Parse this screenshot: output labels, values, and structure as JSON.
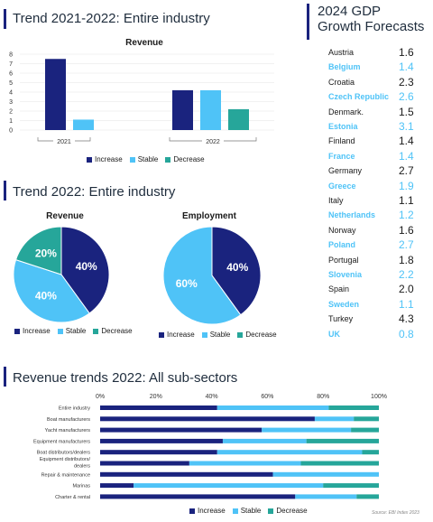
{
  "colors": {
    "increase": "#1a237e",
    "stable": "#4fc3f7",
    "decrease": "#26a69a",
    "accent": "#1a237e"
  },
  "sections": {
    "trend_2021_2022": "Trend 2021-2022: Entire industry",
    "trend_2022": "Trend 2022: Entire industry",
    "subsectors": "Revenue trends 2022: All sub-sectors"
  },
  "legend": {
    "increase": "Increase",
    "stable": "Stable",
    "decrease": "Decrease"
  },
  "gdp": {
    "title_line1": "2024 GDP",
    "title_line2": "Growth Forecasts",
    "rows": [
      {
        "name": "Austria",
        "value": "1.6",
        "hl": false
      },
      {
        "name": "Belgium",
        "value": "1.4",
        "hl": true
      },
      {
        "name": "Croatia",
        "value": "2.3",
        "hl": false
      },
      {
        "name": "Czech Republic",
        "value": "2.6",
        "hl": true
      },
      {
        "name": "Denmark.",
        "value": "1.5",
        "hl": false
      },
      {
        "name": "Estonia",
        "value": "3.1",
        "hl": true
      },
      {
        "name": "Finland",
        "value": "1.4",
        "hl": false
      },
      {
        "name": "France",
        "value": "1.4",
        "hl": true
      },
      {
        "name": "Germany",
        "value": "2.7",
        "hl": false
      },
      {
        "name": "Greece",
        "value": "1.9",
        "hl": true
      },
      {
        "name": "Italy",
        "value": "1.1",
        "hl": false
      },
      {
        "name": "Netherlands",
        "value": "1.2",
        "hl": true
      },
      {
        "name": "Norway",
        "value": "1.6",
        "hl": false
      },
      {
        "name": "Poland",
        "value": "2.7",
        "hl": true
      },
      {
        "name": "Portugal",
        "value": "1.8",
        "hl": false
      },
      {
        "name": "Slovenia",
        "value": "2.2",
        "hl": true
      },
      {
        "name": "Spain",
        "value": "2.0",
        "hl": false
      },
      {
        "name": "Sweden",
        "value": "1.1",
        "hl": true
      },
      {
        "name": "Turkey",
        "value": "4.3",
        "hl": false
      },
      {
        "name": "UK",
        "value": "0.8",
        "hl": true
      }
    ]
  },
  "source": "Source: EBI Index 2023",
  "chart_data": [
    {
      "type": "bar",
      "title": "Revenue",
      "groups": [
        "2021",
        "2022"
      ],
      "series": [
        {
          "name": "Increase",
          "values": [
            7.5,
            4.2
          ]
        },
        {
          "name": "Stable",
          "values": [
            1.1,
            4.2
          ]
        },
        {
          "name": "Decrease",
          "values": [
            0,
            2.2
          ]
        }
      ],
      "yticks": [
        "8",
        "7",
        "6",
        "5",
        "4",
        "3",
        "2",
        "1",
        "0"
      ],
      "ylim": [
        0,
        8
      ],
      "legend": "bottom"
    },
    {
      "type": "pie",
      "title": "Revenue",
      "slices": [
        {
          "name": "Increase",
          "value": 40,
          "label": "40%"
        },
        {
          "name": "Stable",
          "value": 40,
          "label": "40%"
        },
        {
          "name": "Decrease",
          "value": 20,
          "label": "20%"
        }
      ]
    },
    {
      "type": "pie",
      "title": "Employment",
      "slices": [
        {
          "name": "Increase",
          "value": 40,
          "label": "40%"
        },
        {
          "name": "Stable",
          "value": 60,
          "label": "60%"
        },
        {
          "name": "Decrease",
          "value": 0,
          "label": ""
        }
      ]
    },
    {
      "type": "bar",
      "orientation": "horizontal-stacked",
      "xticks": [
        "0%",
        "20%",
        "40%",
        "60%",
        "80%",
        "100%"
      ],
      "categories": [
        "Entire industry",
        "Boat manufacturers",
        "Yacht manufacturers",
        "Equipment manufacturers",
        "Boat distributors/dealers",
        "Equipment distributors/ dealers",
        "Repair & maintenance",
        "Marinas",
        "Charter & rental"
      ],
      "series": [
        {
          "name": "Increase",
          "values": [
            42,
            77,
            58,
            44,
            42,
            32,
            62,
            12,
            70
          ]
        },
        {
          "name": "Stable",
          "values": [
            40,
            14,
            32,
            30,
            52,
            40,
            38,
            68,
            22
          ]
        },
        {
          "name": "Decrease",
          "values": [
            18,
            9,
            10,
            26,
            6,
            28,
            0,
            20,
            8
          ]
        }
      ]
    }
  ]
}
